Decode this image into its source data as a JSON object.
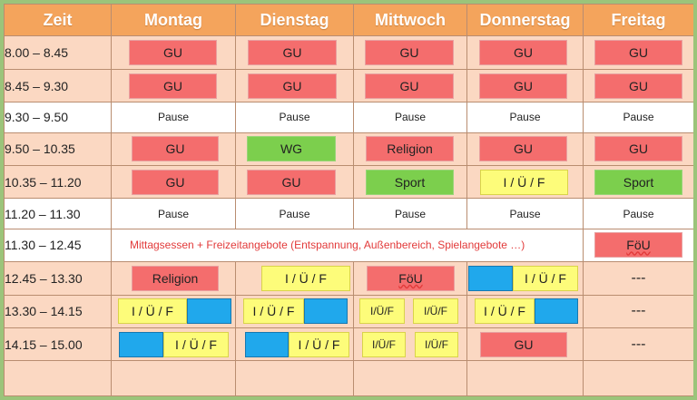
{
  "header": {
    "time": "Zeit",
    "days": [
      "Montag",
      "Dienstag",
      "Mittwoch",
      "Donnerstag",
      "Freitag"
    ]
  },
  "rows": [
    {
      "time": "8.00 –   8.45"
    },
    {
      "time": "8.45 –   9.30"
    },
    {
      "time": "9.30 –   9.50"
    },
    {
      "time": "9.50 – 10.35"
    },
    {
      "time": "10.35 – 11.20"
    },
    {
      "time": "11.20 – 11.30"
    },
    {
      "time": "11.30 – 12.45"
    },
    {
      "time": "12.45 – 13.30"
    },
    {
      "time": "13.30 – 14.15"
    },
    {
      "time": "14.15 – 15.00"
    }
  ],
  "labels": {
    "gu": "GU",
    "wg": "WG",
    "religion": "Religion",
    "sport": "Sport",
    "iuf": "I / Ü / F",
    "iuf_short": "I/Ü/F",
    "foeu": "FöU",
    "pause": "Pause",
    "dash": "---",
    "lunch": "Mittagsessen +  Freizeitangebote (Entspannung, Außenbereich, Spielangebote …)"
  },
  "colors": {
    "header_bg": "#f4a45c",
    "row_alt_bg": "#fbd8c2",
    "gu_red": "#f46d6d",
    "green": "#7ccf4d",
    "yellow": "#fdfc7a",
    "blue": "#20a8ec",
    "frame": "#9bc47a"
  }
}
